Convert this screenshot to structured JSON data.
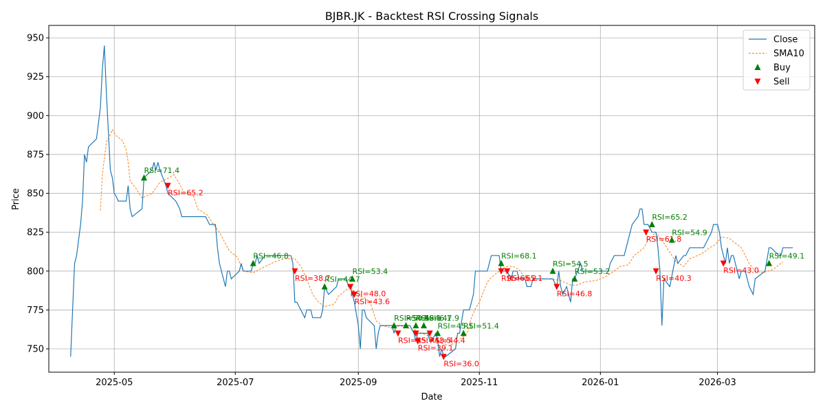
{
  "chart_data": {
    "type": "line",
    "title": "BJBR.JK - Backtest RSI Crossing Signals",
    "xlabel": "Date",
    "ylabel": "Price",
    "x_range": [
      "2025-03-29",
      "2026-04-19"
    ],
    "ylim": [
      735,
      958
    ],
    "grid": true,
    "legend_position": "top-right",
    "x_ticks": [
      {
        "date": "2025-05-01",
        "label": "2025-05"
      },
      {
        "date": "2025-07-01",
        "label": "2025-07"
      },
      {
        "date": "2025-09-01",
        "label": "2025-09"
      },
      {
        "date": "2025-11-01",
        "label": "2025-11"
      },
      {
        "date": "2026-01-01",
        "label": "2026-01"
      },
      {
        "date": "2026-03-01",
        "label": "2026-03"
      }
    ],
    "y_ticks": [
      750,
      775,
      800,
      825,
      850,
      875,
      900,
      925,
      950
    ],
    "colors": {
      "close": "#1f77b4",
      "sma": "#ff7f0e",
      "buy": "#008000",
      "sell": "#ff0000",
      "grid": "#b0b0b0"
    },
    "legend": [
      {
        "label": "Close",
        "kind": "line"
      },
      {
        "label": "SMA10",
        "kind": "dashed"
      },
      {
        "label": "Buy",
        "kind": "buy"
      },
      {
        "label": "Sell",
        "kind": "sell"
      }
    ],
    "close": [
      [
        "2025-04-09",
        745
      ],
      [
        "2025-04-10",
        775
      ],
      [
        "2025-04-11",
        805
      ],
      [
        "2025-04-12",
        810
      ],
      [
        "2025-04-14",
        830
      ],
      [
        "2025-04-15",
        845
      ],
      [
        "2025-04-16",
        875
      ],
      [
        "2025-04-17",
        870
      ],
      [
        "2025-04-18",
        880
      ],
      [
        "2025-04-22",
        885
      ],
      [
        "2025-04-24",
        905
      ],
      [
        "2025-04-25",
        930
      ],
      [
        "2025-04-26",
        945
      ],
      [
        "2025-04-27",
        915
      ],
      [
        "2025-04-28",
        890
      ],
      [
        "2025-04-29",
        865
      ],
      [
        "2025-04-30",
        860
      ],
      [
        "2025-05-01",
        850
      ],
      [
        "2025-05-02",
        848
      ],
      [
        "2025-05-03",
        845
      ],
      [
        "2025-05-07",
        845
      ],
      [
        "2025-05-08",
        855
      ],
      [
        "2025-05-09",
        840
      ],
      [
        "2025-05-10",
        835
      ],
      [
        "2025-05-15",
        840
      ],
      [
        "2025-05-16",
        860
      ],
      [
        "2025-05-20",
        865
      ],
      [
        "2025-05-21",
        870
      ],
      [
        "2025-05-22",
        865
      ],
      [
        "2025-05-23",
        870
      ],
      [
        "2025-05-24",
        865
      ],
      [
        "2025-05-27",
        855
      ],
      [
        "2025-05-28",
        850
      ],
      [
        "2025-06-01",
        845
      ],
      [
        "2025-06-03",
        840
      ],
      [
        "2025-06-04",
        835
      ],
      [
        "2025-06-10",
        835
      ],
      [
        "2025-06-16",
        835
      ],
      [
        "2025-06-18",
        830
      ],
      [
        "2025-06-21",
        830
      ],
      [
        "2025-06-22",
        815
      ],
      [
        "2025-06-23",
        805
      ],
      [
        "2025-06-26",
        790
      ],
      [
        "2025-06-27",
        800
      ],
      [
        "2025-06-28",
        800
      ],
      [
        "2025-06-29",
        795
      ],
      [
        "2025-07-03",
        800
      ],
      [
        "2025-07-04",
        805
      ],
      [
        "2025-07-05",
        800
      ],
      [
        "2025-07-09",
        800
      ],
      [
        "2025-07-10",
        805
      ],
      [
        "2025-07-11",
        805
      ],
      [
        "2025-07-12",
        810
      ],
      [
        "2025-07-13",
        805
      ],
      [
        "2025-07-16",
        810
      ],
      [
        "2025-07-28",
        810
      ],
      [
        "2025-07-29",
        810
      ],
      [
        "2025-07-30",
        805
      ],
      [
        "2025-07-31",
        780
      ],
      [
        "2025-08-01",
        780
      ],
      [
        "2025-08-03",
        775
      ],
      [
        "2025-08-05",
        770
      ],
      [
        "2025-08-06",
        775
      ],
      [
        "2025-08-08",
        775
      ],
      [
        "2025-08-09",
        770
      ],
      [
        "2025-08-13",
        770
      ],
      [
        "2025-08-14",
        775
      ],
      [
        "2025-08-15",
        790
      ],
      [
        "2025-08-17",
        785
      ],
      [
        "2025-08-21",
        790
      ],
      [
        "2025-08-22",
        795
      ],
      [
        "2025-08-26",
        795
      ],
      [
        "2025-08-27",
        790
      ],
      [
        "2025-08-28",
        790
      ],
      [
        "2025-08-29",
        785
      ],
      [
        "2025-08-30",
        780
      ],
      [
        "2025-09-01",
        765
      ],
      [
        "2025-09-02",
        750
      ],
      [
        "2025-09-03",
        775
      ],
      [
        "2025-09-04",
        775
      ],
      [
        "2025-09-05",
        770
      ],
      [
        "2025-09-09",
        765
      ],
      [
        "2025-09-10",
        750
      ],
      [
        "2025-09-11",
        760
      ],
      [
        "2025-09-12",
        765
      ],
      [
        "2025-09-18",
        765
      ],
      [
        "2025-09-19",
        760
      ],
      [
        "2025-09-20",
        765
      ],
      [
        "2025-09-27",
        765
      ],
      [
        "2025-09-29",
        760
      ],
      [
        "2025-09-30",
        755
      ],
      [
        "2025-10-01",
        760
      ],
      [
        "2025-10-02",
        760
      ],
      [
        "2025-10-06",
        760
      ],
      [
        "2025-10-07",
        755
      ],
      [
        "2025-10-08",
        755
      ],
      [
        "2025-10-10",
        760
      ],
      [
        "2025-10-11",
        755
      ],
      [
        "2025-10-12",
        745
      ],
      [
        "2025-10-13",
        750
      ],
      [
        "2025-10-14",
        745
      ],
      [
        "2025-10-15",
        745
      ],
      [
        "2025-10-20",
        750
      ],
      [
        "2025-10-21",
        760
      ],
      [
        "2025-10-22",
        760
      ],
      [
        "2025-10-24",
        775
      ],
      [
        "2025-10-27",
        775
      ],
      [
        "2025-10-29",
        785
      ],
      [
        "2025-10-30",
        800
      ],
      [
        "2025-11-05",
        800
      ],
      [
        "2025-11-07",
        810
      ],
      [
        "2025-11-11",
        810
      ],
      [
        "2025-11-12",
        800
      ],
      [
        "2025-11-13",
        800
      ],
      [
        "2025-11-15",
        800
      ],
      [
        "2025-11-17",
        795
      ],
      [
        "2025-11-18",
        800
      ],
      [
        "2025-11-20",
        800
      ],
      [
        "2025-11-21",
        795
      ],
      [
        "2025-11-24",
        795
      ],
      [
        "2025-11-25",
        790
      ],
      [
        "2025-11-27",
        790
      ],
      [
        "2025-11-28",
        795
      ],
      [
        "2025-12-08",
        795
      ],
      [
        "2025-12-10",
        790
      ],
      [
        "2025-12-11",
        800
      ],
      [
        "2025-12-12",
        790
      ],
      [
        "2025-12-13",
        785
      ],
      [
        "2025-12-15",
        790
      ],
      [
        "2025-12-17",
        780
      ],
      [
        "2025-12-18",
        795
      ],
      [
        "2025-12-19",
        795
      ],
      [
        "2025-12-22",
        805
      ],
      [
        "2025-12-23",
        800
      ],
      [
        "2025-12-24",
        800
      ],
      [
        "2026-01-05",
        800
      ],
      [
        "2026-01-06",
        805
      ],
      [
        "2026-01-08",
        810
      ],
      [
        "2026-01-13",
        810
      ],
      [
        "2026-01-14",
        815
      ],
      [
        "2026-01-16",
        825
      ],
      [
        "2026-01-17",
        830
      ],
      [
        "2026-01-20",
        835
      ],
      [
        "2026-01-21",
        840
      ],
      [
        "2026-01-22",
        840
      ],
      [
        "2026-01-23",
        830
      ],
      [
        "2026-01-25",
        830
      ],
      [
        "2026-01-27",
        825
      ],
      [
        "2026-01-29",
        825
      ],
      [
        "2026-01-30",
        815
      ],
      [
        "2026-01-31",
        800
      ],
      [
        "2026-02-01",
        765
      ],
      [
        "2026-02-02",
        795
      ],
      [
        "2026-02-05",
        790
      ],
      [
        "2026-02-08",
        810
      ],
      [
        "2026-02-09",
        805
      ],
      [
        "2026-02-12",
        810
      ],
      [
        "2026-02-13",
        810
      ],
      [
        "2026-02-15",
        815
      ],
      [
        "2026-02-22",
        815
      ],
      [
        "2026-02-24",
        820
      ],
      [
        "2026-02-26",
        825
      ],
      [
        "2026-02-27",
        830
      ],
      [
        "2026-03-01",
        830
      ],
      [
        "2026-03-02",
        825
      ],
      [
        "2026-03-03",
        815
      ],
      [
        "2026-03-05",
        805
      ],
      [
        "2026-03-06",
        815
      ],
      [
        "2026-03-07",
        805
      ],
      [
        "2026-03-08",
        810
      ],
      [
        "2026-03-09",
        810
      ],
      [
        "2026-03-10",
        805
      ],
      [
        "2026-03-12",
        795
      ],
      [
        "2026-03-13",
        800
      ],
      [
        "2026-03-15",
        800
      ],
      [
        "2026-03-17",
        790
      ],
      [
        "2026-03-19",
        785
      ],
      [
        "2026-03-20",
        795
      ],
      [
        "2026-03-25",
        800
      ],
      [
        "2026-03-27",
        815
      ],
      [
        "2026-03-28",
        815
      ],
      [
        "2026-04-01",
        810
      ],
      [
        "2026-04-02",
        810
      ],
      [
        "2026-04-03",
        815
      ],
      [
        "2026-04-08",
        815
      ]
    ],
    "sma10": [
      [
        "2025-04-24",
        839
      ],
      [
        "2025-04-25",
        862
      ],
      [
        "2025-04-27",
        883
      ],
      [
        "2025-04-29",
        888
      ],
      [
        "2025-04-30",
        891
      ],
      [
        "2025-05-02",
        887
      ],
      [
        "2025-05-05",
        884
      ],
      [
        "2025-05-07",
        878
      ],
      [
        "2025-05-08",
        870
      ],
      [
        "2025-05-09",
        858
      ],
      [
        "2025-05-12",
        853
      ],
      [
        "2025-05-15",
        847
      ],
      [
        "2025-05-20",
        850
      ],
      [
        "2025-05-24",
        857
      ],
      [
        "2025-05-27",
        859
      ],
      [
        "2025-05-31",
        862
      ],
      [
        "2025-06-02",
        858
      ],
      [
        "2025-06-05",
        851
      ],
      [
        "2025-06-10",
        848
      ],
      [
        "2025-06-12",
        840
      ],
      [
        "2025-06-17",
        836
      ],
      [
        "2025-06-20",
        830
      ],
      [
        "2025-06-23",
        825
      ],
      [
        "2025-06-28",
        813
      ],
      [
        "2025-07-02",
        809
      ],
      [
        "2025-07-05",
        800
      ],
      [
        "2025-07-10",
        799
      ],
      [
        "2025-07-13",
        801
      ],
      [
        "2025-07-16",
        803
      ],
      [
        "2025-07-21",
        806
      ],
      [
        "2025-07-26",
        808
      ],
      [
        "2025-07-31",
        808
      ],
      [
        "2025-08-03",
        803
      ],
      [
        "2025-08-06",
        795
      ],
      [
        "2025-08-09",
        785
      ],
      [
        "2025-08-12",
        780
      ],
      [
        "2025-08-15",
        777
      ],
      [
        "2025-08-20",
        779
      ],
      [
        "2025-08-22",
        784
      ],
      [
        "2025-08-26",
        788
      ],
      [
        "2025-08-28",
        790
      ],
      [
        "2025-09-01",
        784
      ],
      [
        "2025-09-04",
        783
      ],
      [
        "2025-09-07",
        780
      ],
      [
        "2025-09-10",
        768
      ],
      [
        "2025-09-13",
        765
      ],
      [
        "2025-09-19",
        763
      ],
      [
        "2025-09-22",
        765
      ],
      [
        "2025-09-27",
        763
      ],
      [
        "2025-09-30",
        762
      ],
      [
        "2025-10-03",
        760
      ],
      [
        "2025-10-07",
        758
      ],
      [
        "2025-10-11",
        755
      ],
      [
        "2025-10-14",
        753
      ],
      [
        "2025-10-17",
        752
      ],
      [
        "2025-10-21",
        755
      ],
      [
        "2025-10-26",
        760
      ],
      [
        "2025-10-28",
        770
      ],
      [
        "2025-10-30",
        776
      ],
      [
        "2025-11-01",
        780
      ],
      [
        "2025-11-05",
        793
      ],
      [
        "2025-11-08",
        797
      ],
      [
        "2025-11-12",
        801
      ],
      [
        "2025-11-15",
        803
      ],
      [
        "2025-11-18",
        803
      ],
      [
        "2025-11-21",
        801
      ],
      [
        "2025-11-24",
        796
      ],
      [
        "2025-11-30",
        795
      ],
      [
        "2025-12-06",
        795
      ],
      [
        "2025-12-12",
        794
      ],
      [
        "2025-12-17",
        791
      ],
      [
        "2025-12-20",
        791
      ],
      [
        "2025-12-24",
        793
      ],
      [
        "2025-12-30",
        794
      ],
      [
        "2026-01-03",
        796
      ],
      [
        "2026-01-08",
        800
      ],
      [
        "2026-01-11",
        803
      ],
      [
        "2026-01-15",
        804
      ],
      [
        "2026-01-18",
        810
      ],
      [
        "2026-01-23",
        815
      ],
      [
        "2026-01-25",
        820
      ],
      [
        "2026-01-29",
        825
      ],
      [
        "2026-02-02",
        818
      ],
      [
        "2026-02-05",
        812
      ],
      [
        "2026-02-08",
        806
      ],
      [
        "2026-02-12",
        803
      ],
      [
        "2026-02-15",
        808
      ],
      [
        "2026-02-19",
        810
      ],
      [
        "2026-02-22",
        812
      ],
      [
        "2026-02-25",
        815
      ],
      [
        "2026-02-28",
        817
      ],
      [
        "2026-03-03",
        822
      ],
      [
        "2026-03-07",
        821
      ],
      [
        "2026-03-13",
        815
      ],
      [
        "2026-03-17",
        805
      ],
      [
        "2026-03-20",
        800
      ],
      [
        "2026-03-24",
        799
      ],
      [
        "2026-03-29",
        801
      ],
      [
        "2026-04-03",
        806
      ]
    ],
    "signals": [
      {
        "type": "buy",
        "date": "2025-05-16",
        "price": 860,
        "label": "RSI=71.4"
      },
      {
        "type": "sell",
        "date": "2025-05-28",
        "price": 855,
        "label": "RSI=65.2"
      },
      {
        "type": "buy",
        "date": "2025-07-10",
        "price": 805,
        "label": "RSI=46.8"
      },
      {
        "type": "sell",
        "date": "2025-07-31",
        "price": 800,
        "label": "RSI=38.7"
      },
      {
        "type": "buy",
        "date": "2025-08-15",
        "price": 790,
        "label": "RSI=44.7"
      },
      {
        "type": "buy",
        "date": "2025-08-29",
        "price": 795,
        "label": "RSI=53.4"
      },
      {
        "type": "sell",
        "date": "2025-08-28",
        "price": 790,
        "label": "RSI=48.0"
      },
      {
        "type": "sell",
        "date": "2025-08-30",
        "price": 785,
        "label": "RSI=43.6"
      },
      {
        "type": "buy",
        "date": "2025-09-19",
        "price": 765,
        "label": "RSI=50.5"
      },
      {
        "type": "sell",
        "date": "2025-09-21",
        "price": 760,
        "label": "RSI=45.7"
      },
      {
        "type": "buy",
        "date": "2025-09-25",
        "price": 765,
        "label": "RSI=48.1"
      },
      {
        "type": "buy",
        "date": "2025-09-30",
        "price": 765,
        "label": "RSI=46.1"
      },
      {
        "type": "sell",
        "date": "2025-09-30",
        "price": 760,
        "label": "RSI=43.5"
      },
      {
        "type": "sell",
        "date": "2025-10-01",
        "price": 755,
        "label": "RSI=39.1"
      },
      {
        "type": "buy",
        "date": "2025-10-04",
        "price": 765,
        "label": "RSI=47.9"
      },
      {
        "type": "sell",
        "date": "2025-10-07",
        "price": 760,
        "label": "RSI=44.4"
      },
      {
        "type": "buy",
        "date": "2025-10-11",
        "price": 760,
        "label": "RSI=45.1"
      },
      {
        "type": "sell",
        "date": "2025-10-14",
        "price": 745,
        "label": "RSI=36.0"
      },
      {
        "type": "buy",
        "date": "2025-10-24",
        "price": 760,
        "label": "RSI=51.4"
      },
      {
        "type": "buy",
        "date": "2025-11-12",
        "price": 805,
        "label": "RSI=68.1"
      },
      {
        "type": "sell",
        "date": "2025-11-12",
        "price": 800,
        "label": "RSI=65.2"
      },
      {
        "type": "sell",
        "date": "2025-11-15",
        "price": 800,
        "label": "RSI=65.1"
      },
      {
        "type": "buy",
        "date": "2025-12-08",
        "price": 800,
        "label": "RSI=54.5"
      },
      {
        "type": "sell",
        "date": "2025-12-10",
        "price": 790,
        "label": "RSI=46.8"
      },
      {
        "type": "buy",
        "date": "2025-12-19",
        "price": 795,
        "label": "RSI=53.2"
      },
      {
        "type": "sell",
        "date": "2026-01-24",
        "price": 825,
        "label": "RSI=61.8"
      },
      {
        "type": "buy",
        "date": "2026-01-27",
        "price": 830,
        "label": "RSI=65.2"
      },
      {
        "type": "sell",
        "date": "2026-01-29",
        "price": 800,
        "label": "RSI=40.3"
      },
      {
        "type": "buy",
        "date": "2026-02-06",
        "price": 820,
        "label": "RSI=54.9"
      },
      {
        "type": "sell",
        "date": "2026-03-04",
        "price": 805,
        "label": "RSI=43.0"
      },
      {
        "type": "buy",
        "date": "2026-03-27",
        "price": 805,
        "label": "RSI=49.1"
      }
    ]
  }
}
